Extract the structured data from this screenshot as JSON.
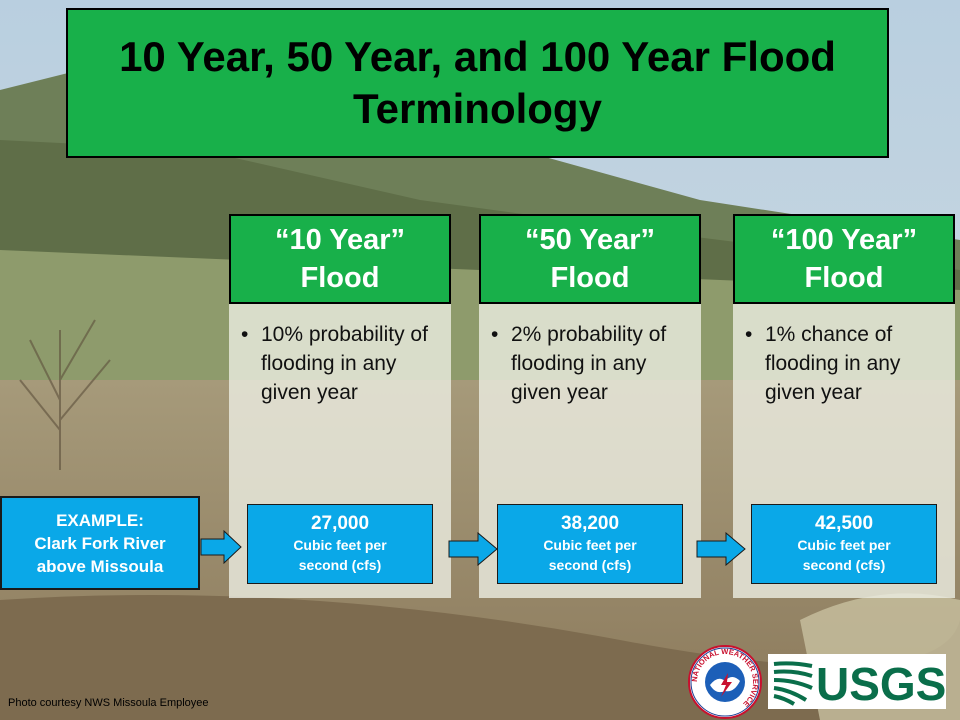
{
  "title": "10 Year, 50 Year, and 100 Year Flood Terminology",
  "columns": [
    {
      "head_line1": "“10 Year”",
      "head_line2": "Flood",
      "bullet": "10% probability of flooding in any given year",
      "value": "27,000",
      "unit_line1": "Cubic feet per",
      "unit_line2": "second (cfs)"
    },
    {
      "head_line1": "“50 Year”",
      "head_line2": "Flood",
      "bullet": "2% probability of flooding in any given year",
      "value": "38,200",
      "unit_line1": "Cubic feet per",
      "unit_line2": "second (cfs)"
    },
    {
      "head_line1": "“100 Year”",
      "head_line2": "Flood",
      "bullet": "1% chance of flooding in any given year",
      "value": "42,500",
      "unit_line1": "Cubic feet per",
      "unit_line2": "second (cfs)"
    }
  ],
  "example": {
    "line1": "EXAMPLE:",
    "line2": "Clark Fork River",
    "line3": "above Missoula"
  },
  "credit": "Photo courtesy NWS Missoula Employee",
  "logos": {
    "nws_text": "NATIONAL WEATHER SERVICE",
    "usgs_text": "USGS"
  },
  "colors": {
    "green": "#18b04a",
    "blue": "#0aa8e8"
  }
}
